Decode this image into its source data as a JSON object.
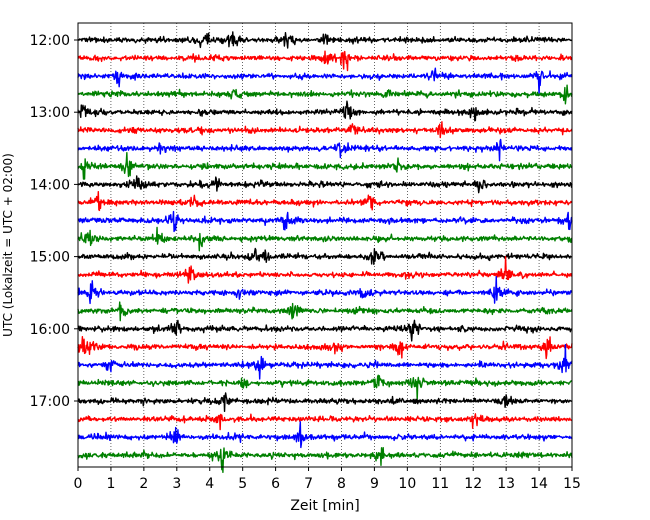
{
  "chart_data": {
    "type": "line",
    "title": "",
    "xlabel": "Zeit  [min]",
    "ylabel": "UTC (Lokalzeit = UTC + 02:00)",
    "xlim": [
      0,
      15
    ],
    "x_ticks": [
      "0",
      "1",
      "2",
      "3",
      "4",
      "5",
      "6",
      "7",
      "8",
      "9",
      "10",
      "11",
      "12",
      "13",
      "14",
      "15"
    ],
    "y_ticks": [
      {
        "label": "12:00",
        "row": 0
      },
      {
        "label": "13:00",
        "row": 4
      },
      {
        "label": "14:00",
        "row": 8
      },
      {
        "label": "15:00",
        "row": 12
      },
      {
        "label": "16:00",
        "row": 16
      },
      {
        "label": "17:00",
        "row": 20
      }
    ],
    "grid": "vertical-dotted",
    "trace_interval_min": 15,
    "color_cycle": [
      "#000000",
      "#ff0000",
      "#0000ff",
      "#008000"
    ],
    "traces": [
      {
        "start": "12:00",
        "events": [
          3.85,
          4.7,
          6.3,
          7.5
        ]
      },
      {
        "start": "12:15",
        "events": [
          7.55,
          8.1
        ]
      },
      {
        "start": "12:30",
        "events": [
          1.2,
          10.8,
          14.0
        ]
      },
      {
        "start": "12:45",
        "events": [
          4.7,
          9.4,
          14.8
        ]
      },
      {
        "start": "13:00",
        "events": [
          0.2,
          8.2,
          12.05
        ]
      },
      {
        "start": "13:15",
        "events": [
          8.3,
          11.0
        ]
      },
      {
        "start": "13:30",
        "events": [
          2.5,
          8.0,
          12.8
        ]
      },
      {
        "start": "13:45",
        "events": [
          0.2,
          1.5,
          9.7
        ]
      },
      {
        "start": "14:00",
        "events": [
          1.8,
          4.2,
          12.2
        ]
      },
      {
        "start": "14:15",
        "events": [
          0.6,
          3.55,
          8.9
        ]
      },
      {
        "start": "14:30",
        "events": [
          2.9,
          6.3,
          14.9
        ]
      },
      {
        "start": "14:45",
        "events": [
          0.3,
          2.4,
          3.7
        ]
      },
      {
        "start": "15:00",
        "events": [
          5.35,
          5.7,
          9.0
        ]
      },
      {
        "start": "15:15",
        "events": [
          3.4,
          13.0
        ]
      },
      {
        "start": "15:30",
        "events": [
          0.4,
          4.9,
          8.6,
          12.7
        ]
      },
      {
        "start": "15:45",
        "events": [
          1.3,
          6.5
        ]
      },
      {
        "start": "16:00",
        "events": [
          3.0,
          10.2
        ]
      },
      {
        "start": "16:15",
        "events": [
          0.25,
          7.8,
          9.8,
          14.2
        ]
      },
      {
        "start": "16:30",
        "events": [
          1.0,
          5.5,
          14.8
        ]
      },
      {
        "start": "16:45",
        "events": [
          5.05,
          9.1,
          10.3
        ]
      },
      {
        "start": "17:00",
        "events": [
          4.5,
          13.0
        ]
      },
      {
        "start": "17:15",
        "events": [
          4.3,
          12.0
        ]
      },
      {
        "start": "17:30",
        "events": [
          3.0,
          6.75
        ]
      },
      {
        "start": "17:45",
        "events": [
          4.4,
          9.2
        ]
      }
    ]
  }
}
